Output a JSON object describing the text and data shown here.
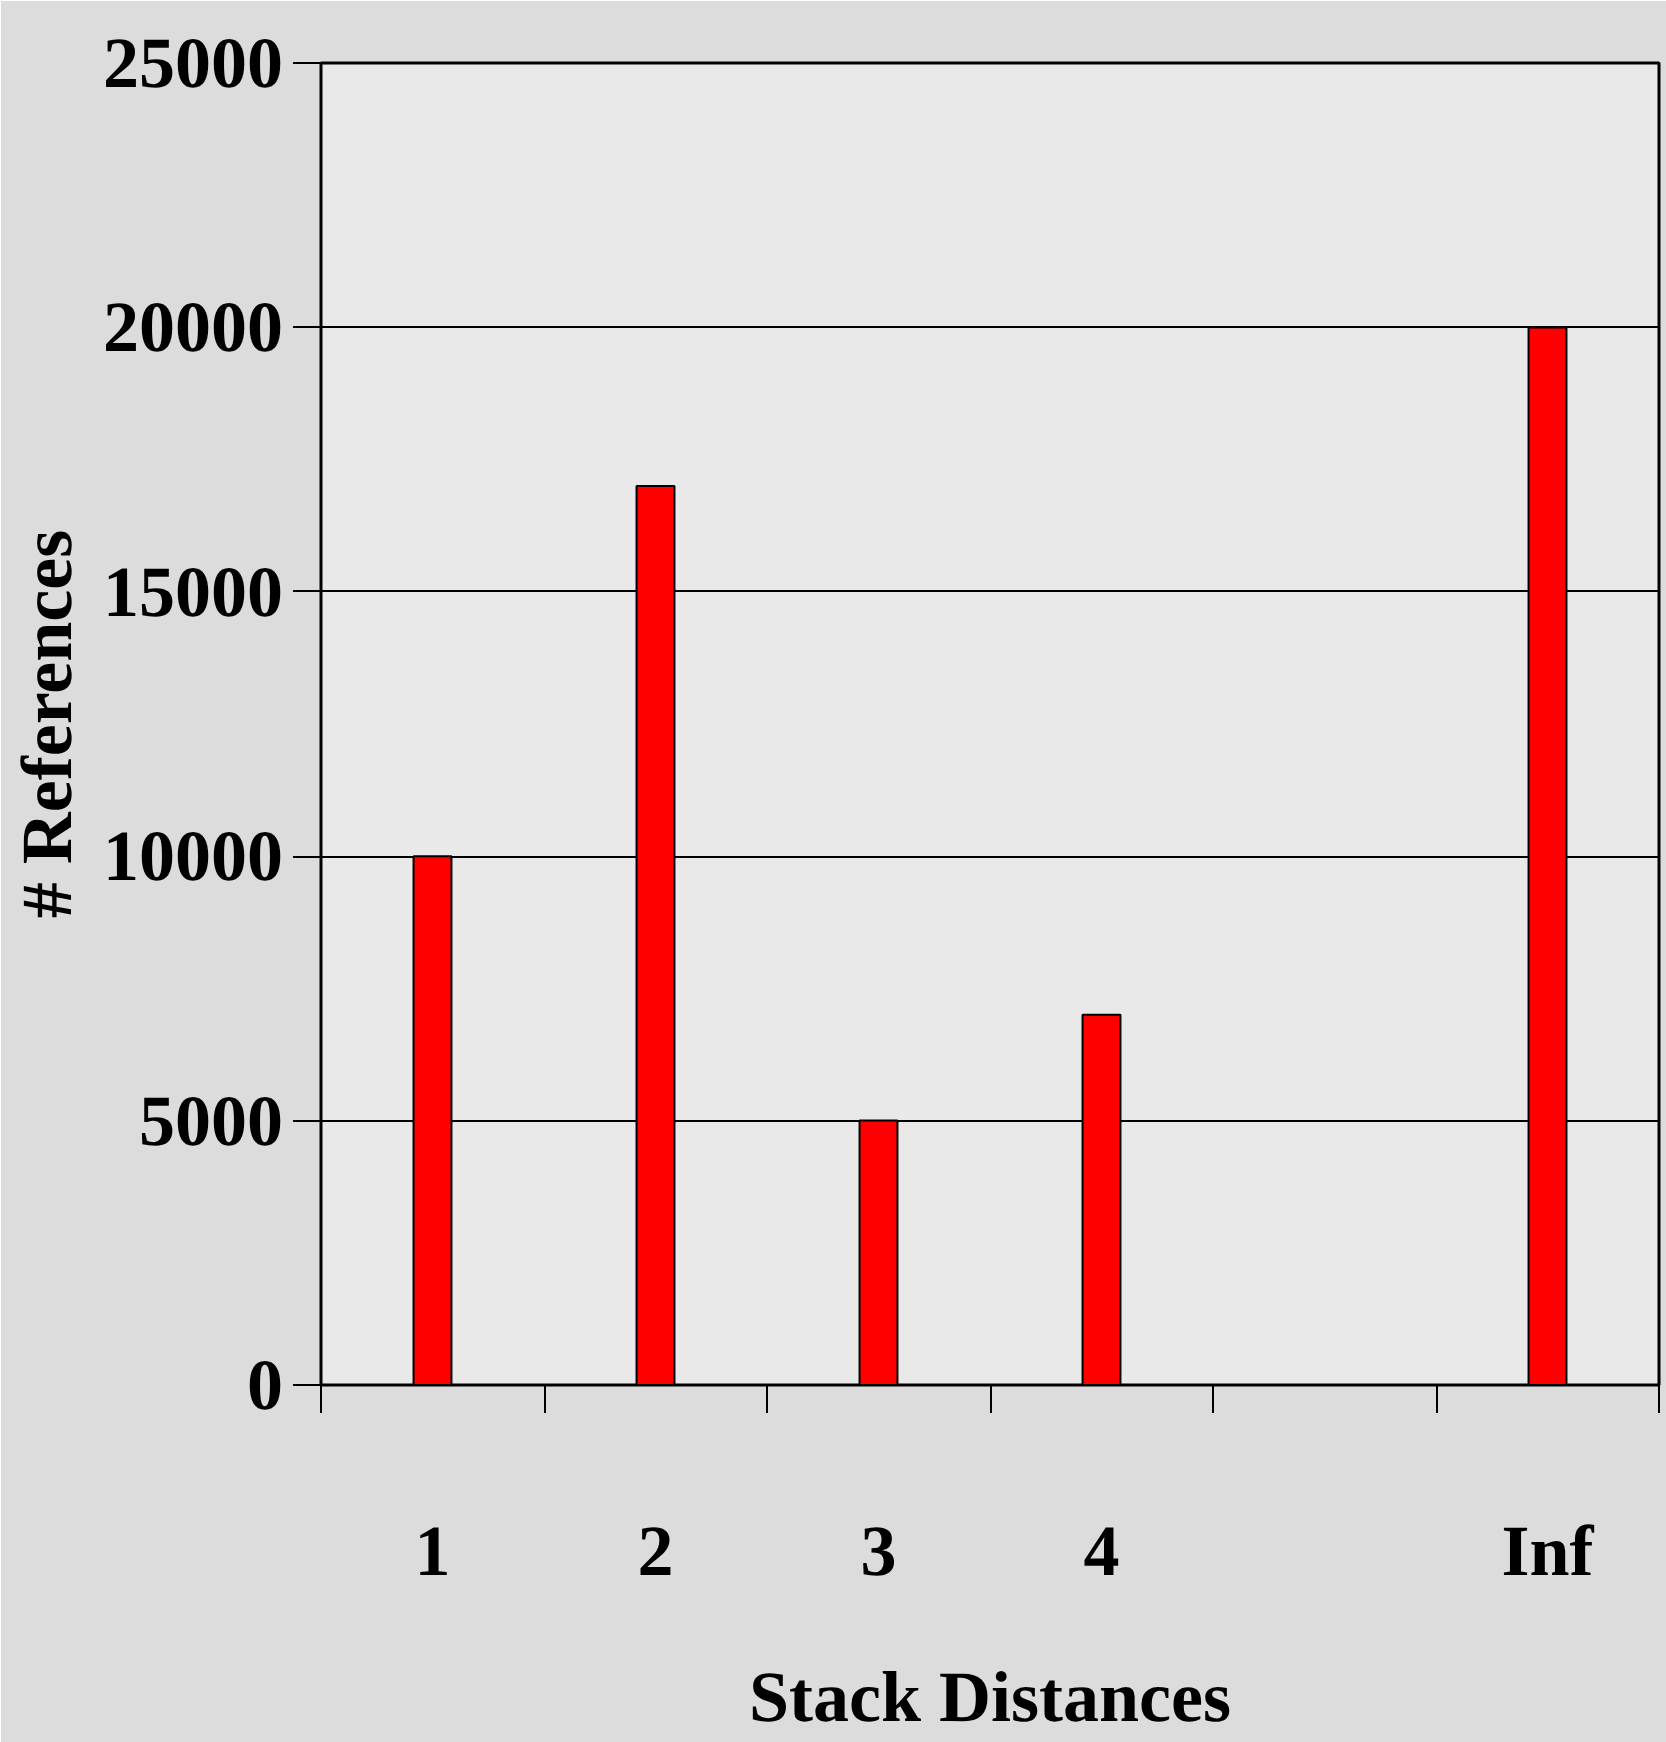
{
  "chart_data": {
    "type": "bar",
    "xlabel": "Stack Distances",
    "ylabel": "# References",
    "categories": [
      "1",
      "2",
      "3",
      "4",
      null,
      "Inf"
    ],
    "values": [
      10000,
      17000,
      5000,
      7000,
      null,
      20000
    ],
    "color": "#ff0000",
    "ylim": [
      0,
      25000
    ],
    "yticks": [
      0,
      5000,
      10000,
      15000,
      20000,
      25000
    ],
    "grid": "y"
  }
}
